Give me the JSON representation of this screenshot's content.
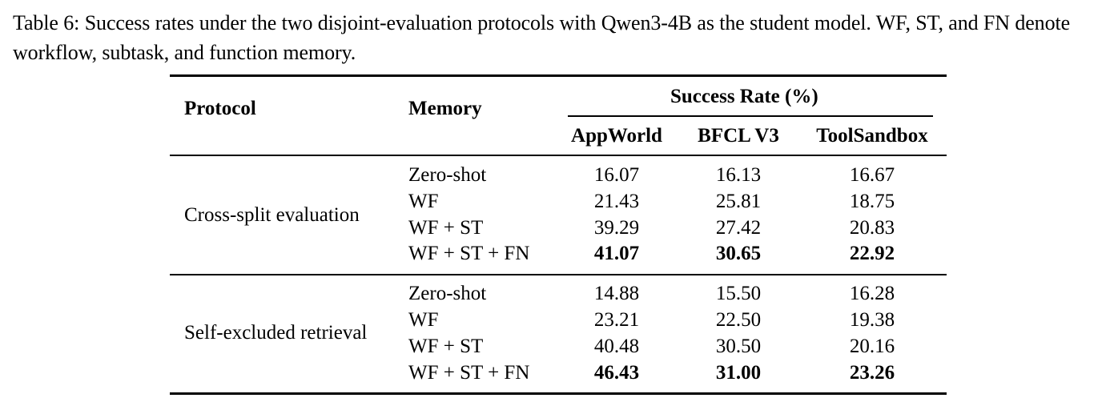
{
  "caption": "Table 6: Success rates under the two disjoint-evaluation protocols with Qwen3-4B as the student model. WF, ST, and FN denote workflow, subtask, and function memory.",
  "table": {
    "headers": {
      "protocol": "Protocol",
      "memory": "Memory",
      "group": "Success Rate (%)",
      "columns": [
        "AppWorld",
        "BFCL V3",
        "ToolSandbox"
      ]
    },
    "blocks": [
      {
        "protocol": "Cross-split evaluation",
        "rows": [
          {
            "memory": "Zero-shot",
            "values": [
              "16.07",
              "16.13",
              "16.67"
            ],
            "bold": false
          },
          {
            "memory": "WF",
            "values": [
              "21.43",
              "25.81",
              "18.75"
            ],
            "bold": false
          },
          {
            "memory": "WF + ST",
            "values": [
              "39.29",
              "27.42",
              "20.83"
            ],
            "bold": false
          },
          {
            "memory": "WF + ST + FN",
            "values": [
              "41.07",
              "30.65",
              "22.92"
            ],
            "bold": true
          }
        ]
      },
      {
        "protocol": "Self-excluded retrieval",
        "rows": [
          {
            "memory": "Zero-shot",
            "values": [
              "14.88",
              "15.50",
              "16.28"
            ],
            "bold": false
          },
          {
            "memory": "WF",
            "values": [
              "23.21",
              "22.50",
              "19.38"
            ],
            "bold": false
          },
          {
            "memory": "WF + ST",
            "values": [
              "40.48",
              "30.50",
              "20.16"
            ],
            "bold": false
          },
          {
            "memory": "WF + ST + FN",
            "values": [
              "46.43",
              "31.00",
              "23.26"
            ],
            "bold": true
          }
        ]
      }
    ]
  }
}
